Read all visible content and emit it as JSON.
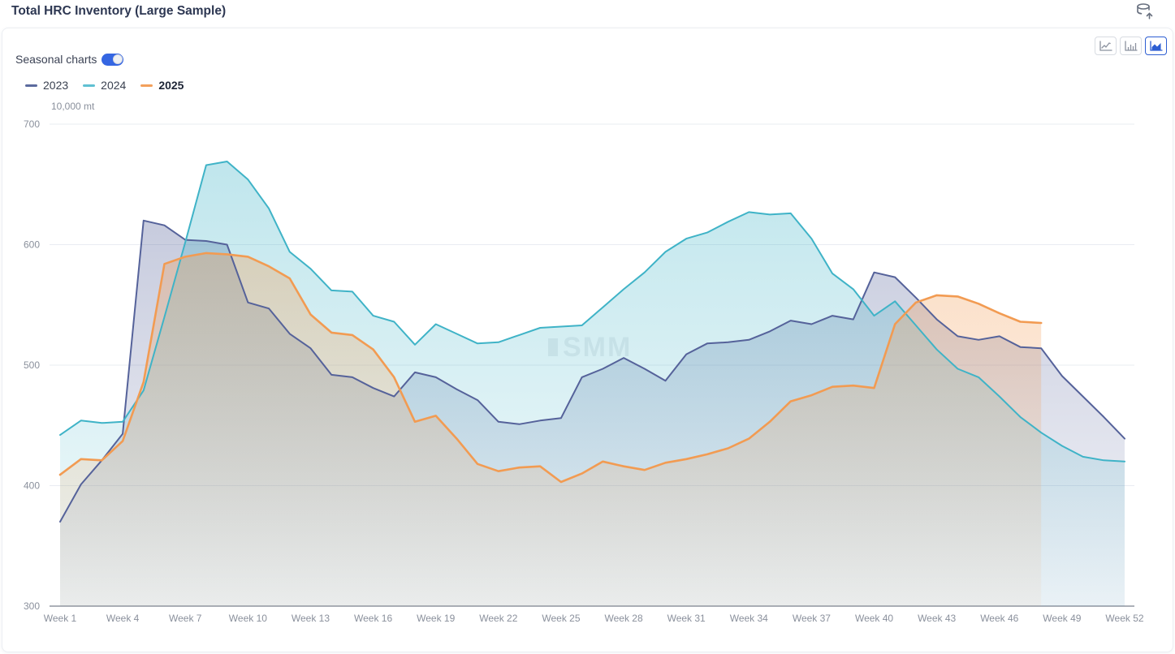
{
  "window": {
    "title": "Total HRC Inventory (Large Sample)"
  },
  "toolbar": {
    "export_icon": "database-export-icon",
    "chart_type_buttons": [
      "line",
      "bar",
      "area"
    ],
    "selected_chart_type": "area"
  },
  "controls": {
    "seasonal_charts_label": "Seasonal charts",
    "seasonal_charts_on": true
  },
  "watermark": "SMM",
  "chart_data": {
    "type": "area",
    "title": "Total HRC Inventory (Large Sample)",
    "unit_label": "10,000 mt",
    "grid": true,
    "legend_position": "top-left",
    "x_axis": {
      "total_weeks": 52,
      "tick_label_prefix": "Week ",
      "tick_weeks": [
        1,
        4,
        7,
        10,
        13,
        16,
        19,
        22,
        25,
        28,
        31,
        34,
        37,
        40,
        43,
        46,
        49,
        52
      ]
    },
    "y_axis": {
      "min": 300,
      "max": 700,
      "ticks": [
        300,
        400,
        500,
        600,
        700
      ]
    },
    "series": [
      {
        "name": "2023",
        "color": "#55629a",
        "legend_color": "#5c6b9e",
        "bold": false,
        "start_week": 1,
        "values": [
          370,
          401,
          421,
          443,
          620,
          616,
          604,
          603,
          600,
          552,
          547,
          526,
          514,
          492,
          490,
          481,
          474,
          494,
          490,
          480,
          471,
          453,
          451,
          454,
          456,
          490,
          497,
          506,
          497,
          487,
          509,
          518,
          519,
          521,
          528,
          537,
          534,
          541,
          538,
          577,
          573,
          556,
          538,
          524,
          521,
          524,
          515,
          514,
          491,
          474,
          457,
          439
        ]
      },
      {
        "name": "2024",
        "color": "#3fb3c7",
        "legend_color": "#5fc0d2",
        "bold": false,
        "start_week": 1,
        "values": [
          442,
          454,
          452,
          453,
          479,
          540,
          602,
          666,
          669,
          654,
          630,
          594,
          580,
          562,
          561,
          541,
          536,
          517,
          534,
          526,
          518,
          519,
          525,
          531,
          532,
          533,
          548,
          563,
          577,
          594,
          605,
          610,
          619,
          627,
          625,
          626,
          605,
          576,
          563,
          541,
          553,
          533,
          513,
          497,
          490,
          474,
          457,
          444,
          433,
          424,
          421,
          420
        ]
      },
      {
        "name": "2025",
        "color": "#f29b52",
        "legend_color": "#f3a05c",
        "bold": true,
        "start_week": 1,
        "values": [
          409,
          422,
          421,
          437,
          486,
          584,
          590,
          593,
          592,
          590,
          582,
          572,
          542,
          527,
          525,
          513,
          490,
          453,
          458,
          439,
          418,
          412,
          415,
          416,
          403,
          410,
          420,
          416,
          413,
          419,
          422,
          426,
          431,
          439,
          453,
          470,
          475,
          482,
          483,
          481,
          534,
          552,
          558,
          557,
          551,
          543,
          536,
          535
        ]
      }
    ]
  }
}
